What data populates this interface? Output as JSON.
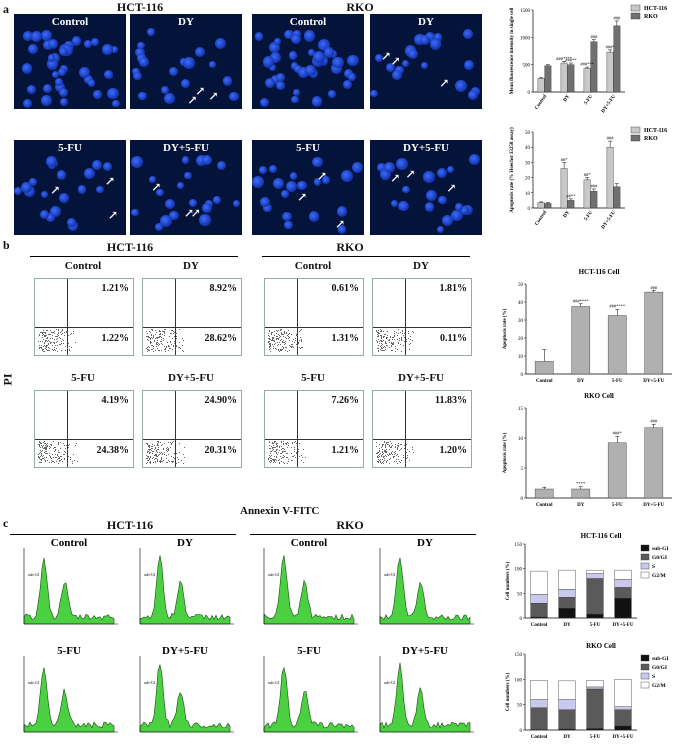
{
  "panel_a": {
    "label": "a",
    "lines": [
      {
        "name": "HCT-116"
      },
      {
        "name": "RKO"
      }
    ],
    "images": [
      {
        "label": "Control"
      },
      {
        "label": "DY"
      },
      {
        "label": "Control"
      },
      {
        "label": "DY"
      },
      {
        "label": "5-FU"
      },
      {
        "label": "DY+5-FU"
      },
      {
        "label": "5-FU"
      },
      {
        "label": "DY+5-FU"
      }
    ]
  },
  "panel_b": {
    "label": "b",
    "lines": [
      {
        "name": "HCT-116"
      },
      {
        "name": "RKO"
      }
    ],
    "y_axis": "PI",
    "x_axis": "Annexin V-FITC",
    "plots": [
      {
        "label": "Control",
        "upper_right": "1.21%",
        "lower_right": "1.22%"
      },
      {
        "label": "DY",
        "upper_right": "8.92%",
        "lower_right": "28.62%"
      },
      {
        "label": "Control",
        "upper_right": "0.61%",
        "lower_right": "1.31%"
      },
      {
        "label": "DY",
        "upper_right": "1.81%",
        "lower_right": "0.11%"
      },
      {
        "label": "5-FU",
        "upper_right": "4.19%",
        "lower_right": "24.38%"
      },
      {
        "label": "DY+5-FU",
        "upper_right": "24.90%",
        "lower_right": "20.31%"
      },
      {
        "label": "5-FU",
        "upper_right": "7.26%",
        "lower_right": "1.21%"
      },
      {
        "label": "DY+5-FU",
        "upper_right": "11.83%",
        "lower_right": "1.20%"
      }
    ]
  },
  "panel_c": {
    "label": "c",
    "lines": [
      {
        "name": "HCT-116"
      },
      {
        "name": "RKO"
      }
    ],
    "plots": [
      {
        "label": "Control"
      },
      {
        "label": "DY"
      },
      {
        "label": "Control"
      },
      {
        "label": "DY"
      },
      {
        "label": "5-FU"
      },
      {
        "label": "DY+5-FU"
      },
      {
        "label": "5-FU"
      },
      {
        "label": "DY+5-FU"
      }
    ],
    "subg1": "sub-G1"
  },
  "chart_data": [
    {
      "type": "bar",
      "ylabel": "Mean fluorescence intensity in single cell",
      "categories": [
        "Control",
        "DY",
        "5-FU",
        "DY+5-FU"
      ],
      "series": [
        {
          "name": "HCT-116",
          "values": [
            250,
            530,
            430,
            730
          ],
          "errors": [
            15,
            30,
            25,
            40
          ]
        },
        {
          "name": "RKO",
          "values": [
            480,
            500,
            920,
            1210
          ],
          "errors": [
            20,
            30,
            40,
            90
          ]
        }
      ],
      "annotations": [
        "###****",
        "###**",
        "###***",
        "###",
        "###*",
        "###"
      ],
      "ylim": [
        0,
        1500
      ],
      "yticks": [
        0,
        500,
        1000,
        1500
      ],
      "legend": "top-right",
      "colors": {
        "HCT-116": "#c8c8c8",
        "RKO": "#707070"
      }
    },
    {
      "type": "bar",
      "ylabel": "Apoptosis rate (% Hoechst 33258 assay)",
      "categories": [
        "Control",
        "DY",
        "5-FU",
        "DY+5-FU"
      ],
      "series": [
        {
          "name": "HCT-116",
          "values": [
            3.5,
            26,
            18.5,
            40
          ],
          "errors": [
            0.5,
            4,
            1.5,
            4
          ]
        },
        {
          "name": "RKO",
          "values": [
            3,
            5,
            11,
            14
          ],
          "errors": [
            0.5,
            1,
            1.5,
            2
          ]
        }
      ],
      "annotations": [
        "##*",
        "##**",
        "##*",
        "###",
        "###"
      ],
      "ylim": [
        0,
        50
      ],
      "yticks": [
        0,
        10,
        20,
        30,
        40,
        50
      ],
      "legend": "top-right",
      "colors": {
        "HCT-116": "#c8c8c8",
        "RKO": "#707070"
      }
    },
    {
      "type": "bar",
      "title": "HCT-116 Cell",
      "ylabel": "Apoptosis rate (%)",
      "categories": [
        "Control",
        "DY",
        "5-FU",
        "DY+5-FU"
      ],
      "values": [
        7,
        37.5,
        32.5,
        45.5
      ],
      "errors": [
        6.5,
        1.5,
        3.5,
        1
      ],
      "annotations": [
        "",
        "###****",
        "###****",
        "###"
      ],
      "ylim": [
        0,
        50
      ],
      "yticks": [
        0,
        10,
        20,
        30,
        40,
        50
      ],
      "color": "#b0b0b0"
    },
    {
      "type": "bar",
      "title": "RKO Cell",
      "ylabel": "Apoptosis rate (%)",
      "categories": [
        "Control",
        "DY",
        "5-FU",
        "DY+5-FU"
      ],
      "values": [
        1.5,
        1.5,
        9.2,
        11.7
      ],
      "errors": [
        0.3,
        0.4,
        1.1,
        0.6
      ],
      "annotations": [
        "",
        "****",
        "###*",
        "###"
      ],
      "ylim": [
        0,
        15
      ],
      "yticks": [
        0,
        5,
        10,
        15
      ],
      "color": "#b0b0b0"
    },
    {
      "type": "bar",
      "stacked": true,
      "title": "HCT-116 Cell",
      "ylabel": "Cell numbers (%)",
      "categories": [
        "Control",
        "DY",
        "5-FU",
        "DY+5-FU"
      ],
      "series": [
        {
          "name": "sub-GI",
          "values": [
            2,
            20,
            8,
            40
          ]
        },
        {
          "name": "G0/GI",
          "values": [
            28,
            22,
            72,
            22
          ]
        },
        {
          "name": "S",
          "values": [
            18,
            16,
            10,
            16
          ]
        },
        {
          "name": "G2/M",
          "values": [
            47,
            39,
            7,
            19
          ]
        }
      ],
      "ylim": [
        0,
        150
      ],
      "yticks": [
        0,
        50,
        100,
        150
      ],
      "legend": "top-right",
      "colors": {
        "sub-GI": "#111111",
        "G0/GI": "#5a5a5a",
        "S": "#c9c9ee",
        "G2/M": "#ffffff"
      }
    },
    {
      "type": "bar",
      "stacked": true,
      "title": "RKO Cell",
      "ylabel": "Cell numbers (%)",
      "categories": [
        "Control",
        "DY",
        "5-FU",
        "DY+5-FU"
      ],
      "series": [
        {
          "name": "sub-GI",
          "values": [
            1,
            2,
            3,
            8
          ]
        },
        {
          "name": "G0/GI",
          "values": [
            43,
            38,
            78,
            32
          ]
        },
        {
          "name": "S",
          "values": [
            16,
            20,
            4,
            6
          ]
        },
        {
          "name": "G2/M",
          "values": [
            38,
            37,
            13,
            54
          ]
        }
      ],
      "ylim": [
        0,
        150
      ],
      "yticks": [
        0,
        50,
        100,
        150
      ],
      "legend": "top-right",
      "colors": {
        "sub-GI": "#111111",
        "G0/GI": "#5a5a5a",
        "S": "#c9c9ee",
        "G2/M": "#ffffff"
      }
    }
  ]
}
